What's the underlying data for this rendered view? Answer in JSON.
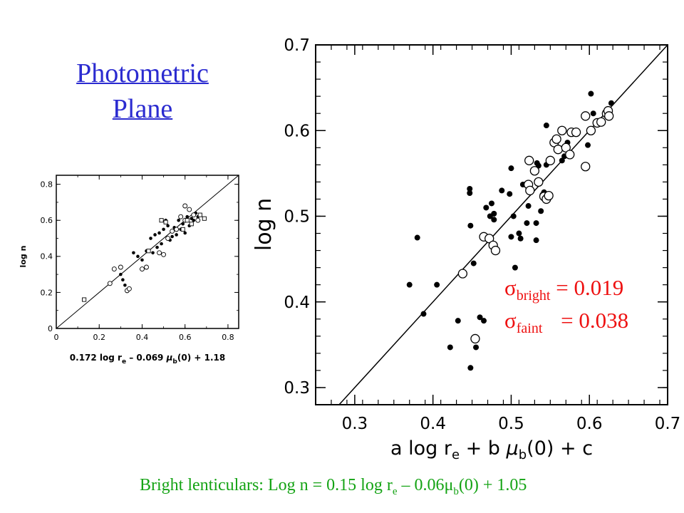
{
  "title": {
    "line1": "Photometric",
    "line2": "Plane"
  },
  "annotations": {
    "sigma_symbol": "σ",
    "bright_sub": "bright",
    "bright_value": "= 0.019",
    "faint_sub": "faint",
    "faint_value": "= 0.038"
  },
  "caption": {
    "part1": "Bright lenticulars:  Log n = 0.15 log r",
    "sub_e": "e",
    "part2": " – 0.06μ",
    "sub_b": "b",
    "part3": "(0) + 1.05"
  },
  "chart_data": [
    {
      "id": "main",
      "type": "scatter",
      "title": "",
      "xlabel": "a log r_e + b μ_b(0) + c",
      "ylabel": "log n",
      "xlim": [
        0.25,
        0.7
      ],
      "ylim": [
        0.28,
        0.7
      ],
      "xticks": [
        0.3,
        0.4,
        0.5,
        0.6,
        0.7
      ],
      "xtick_labels": [
        "0.3",
        "0.4",
        "0.5",
        "0.6",
        "0.7"
      ],
      "yticks": [
        0.3,
        0.4,
        0.5,
        0.6,
        0.7
      ],
      "ytick_labels": [
        "0.3",
        "0.4",
        "0.5",
        "0.6",
        "0.7"
      ],
      "grid": false,
      "line": {
        "x": [
          0.25,
          0.7
        ],
        "y": [
          0.25,
          0.7
        ]
      },
      "series": [
        {
          "marker": "filled-circle",
          "points": [
            [
              0.37,
              0.42
            ],
            [
              0.38,
              0.475
            ],
            [
              0.388,
              0.386
            ],
            [
              0.405,
              0.42
            ],
            [
              0.422,
              0.347
            ],
            [
              0.432,
              0.378
            ],
            [
              0.447,
              0.532
            ],
            [
              0.447,
              0.527
            ],
            [
              0.448,
              0.489
            ],
            [
              0.448,
              0.323
            ],
            [
              0.452,
              0.445
            ],
            [
              0.455,
              0.347
            ],
            [
              0.46,
              0.382
            ],
            [
              0.465,
              0.378
            ],
            [
              0.468,
              0.51
            ],
            [
              0.473,
              0.5
            ],
            [
              0.475,
              0.515
            ],
            [
              0.478,
              0.503
            ],
            [
              0.478,
              0.496
            ],
            [
              0.488,
              0.53
            ],
            [
              0.498,
              0.526
            ],
            [
              0.5,
              0.556
            ],
            [
              0.5,
              0.476
            ],
            [
              0.503,
              0.5
            ],
            [
              0.505,
              0.44
            ],
            [
              0.51,
              0.48
            ],
            [
              0.512,
              0.474
            ],
            [
              0.515,
              0.537
            ],
            [
              0.52,
              0.492
            ],
            [
              0.522,
              0.512
            ],
            [
              0.532,
              0.492
            ],
            [
              0.532,
              0.472
            ],
            [
              0.533,
              0.562
            ],
            [
              0.535,
              0.559
            ],
            [
              0.538,
              0.506
            ],
            [
              0.54,
              0.525
            ],
            [
              0.542,
              0.528
            ],
            [
              0.545,
              0.606
            ],
            [
              0.545,
              0.56
            ],
            [
              0.565,
              0.565
            ],
            [
              0.568,
              0.58
            ],
            [
              0.568,
              0.57
            ],
            [
              0.572,
              0.586
            ],
            [
              0.58,
              0.598
            ],
            [
              0.598,
              0.583
            ],
            [
              0.602,
              0.643
            ],
            [
              0.605,
              0.62
            ],
            [
              0.628,
              0.632
            ]
          ]
        },
        {
          "marker": "open-circle",
          "points": [
            [
              0.438,
              0.433
            ],
            [
              0.454,
              0.357
            ],
            [
              0.465,
              0.476
            ],
            [
              0.472,
              0.474
            ],
            [
              0.477,
              0.466
            ],
            [
              0.48,
              0.46
            ],
            [
              0.523,
              0.565
            ],
            [
              0.522,
              0.537
            ],
            [
              0.524,
              0.53
            ],
            [
              0.53,
              0.553
            ],
            [
              0.535,
              0.54
            ],
            [
              0.542,
              0.523
            ],
            [
              0.545,
              0.52
            ],
            [
              0.548,
              0.524
            ],
            [
              0.55,
              0.565
            ],
            [
              0.555,
              0.586
            ],
            [
              0.558,
              0.59
            ],
            [
              0.56,
              0.578
            ],
            [
              0.565,
              0.6
            ],
            [
              0.57,
              0.58
            ],
            [
              0.575,
              0.572
            ],
            [
              0.577,
              0.598
            ],
            [
              0.583,
              0.598
            ],
            [
              0.595,
              0.558
            ],
            [
              0.595,
              0.617
            ],
            [
              0.602,
              0.6
            ],
            [
              0.61,
              0.609
            ],
            [
              0.615,
              0.61
            ],
            [
              0.622,
              0.62
            ],
            [
              0.624,
              0.623
            ],
            [
              0.625,
              0.617
            ]
          ]
        }
      ]
    },
    {
      "id": "inset",
      "type": "scatter",
      "title": "",
      "xlabel": "0.172 log r_e – 0.069 μ_b(0) + 1.18",
      "ylabel": "log n",
      "xlim": [
        0,
        0.85
      ],
      "ylim": [
        0,
        0.85
      ],
      "xticks": [
        0,
        0.2,
        0.4,
        0.6,
        0.8
      ],
      "xtick_labels": [
        "0",
        "0.2",
        "0.4",
        "0.6",
        "0.8"
      ],
      "yticks": [
        0,
        0.2,
        0.4,
        0.6,
        0.8
      ],
      "ytick_labels": [
        "0",
        "0.2",
        "0.4",
        "0.6",
        "0.8"
      ],
      "grid": false,
      "line": {
        "x": [
          0,
          0.85
        ],
        "y": [
          0,
          0.85
        ]
      },
      "series": [
        {
          "marker": "filled-circle",
          "points": [
            [
              0.3,
              0.3
            ],
            [
              0.31,
              0.27
            ],
            [
              0.32,
              0.24
            ],
            [
              0.36,
              0.42
            ],
            [
              0.38,
              0.4
            ],
            [
              0.4,
              0.38
            ],
            [
              0.42,
              0.43
            ],
            [
              0.44,
              0.5
            ],
            [
              0.46,
              0.52
            ],
            [
              0.48,
              0.53
            ],
            [
              0.49,
              0.47
            ],
            [
              0.5,
              0.55
            ],
            [
              0.52,
              0.57
            ],
            [
              0.53,
              0.49
            ],
            [
              0.55,
              0.56
            ],
            [
              0.56,
              0.52
            ],
            [
              0.57,
              0.6
            ],
            [
              0.58,
              0.55
            ],
            [
              0.59,
              0.58
            ],
            [
              0.6,
              0.53
            ],
            [
              0.61,
              0.62
            ],
            [
              0.62,
              0.57
            ],
            [
              0.63,
              0.61
            ],
            [
              0.64,
              0.6
            ],
            [
              0.65,
              0.64
            ],
            [
              0.66,
              0.62
            ],
            [
              0.45,
              0.42
            ],
            [
              0.51,
              0.6
            ],
            [
              0.54,
              0.51
            ],
            [
              0.47,
              0.45
            ]
          ]
        },
        {
          "marker": "open-circle",
          "points": [
            [
              0.25,
              0.25
            ],
            [
              0.27,
              0.33
            ],
            [
              0.3,
              0.34
            ],
            [
              0.33,
              0.21
            ],
            [
              0.34,
              0.22
            ],
            [
              0.4,
              0.33
            ],
            [
              0.42,
              0.34
            ],
            [
              0.48,
              0.42
            ],
            [
              0.5,
              0.41
            ],
            [
              0.52,
              0.5
            ],
            [
              0.54,
              0.54
            ],
            [
              0.56,
              0.55
            ],
            [
              0.58,
              0.62
            ],
            [
              0.6,
              0.68
            ],
            [
              0.62,
              0.66
            ],
            [
              0.64,
              0.63
            ],
            [
              0.66,
              0.6
            ],
            [
              0.6,
              0.6
            ]
          ]
        },
        {
          "marker": "open-square",
          "points": [
            [
              0.13,
              0.16
            ],
            [
              0.49,
              0.6
            ],
            [
              0.51,
              0.59
            ],
            [
              0.59,
              0.55
            ],
            [
              0.63,
              0.58
            ],
            [
              0.67,
              0.63
            ],
            [
              0.69,
              0.61
            ],
            [
              0.43,
              0.43
            ],
            [
              0.61,
              0.6
            ]
          ]
        }
      ]
    }
  ]
}
